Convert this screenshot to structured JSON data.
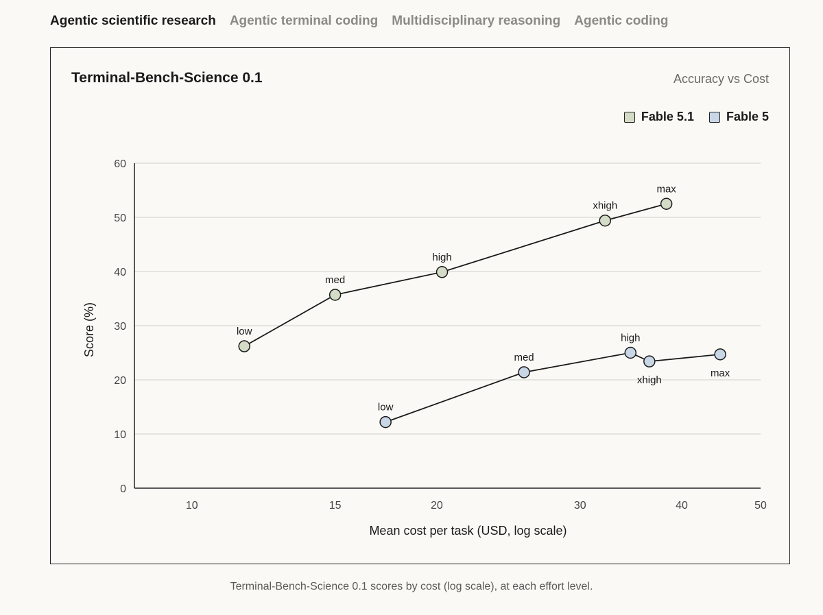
{
  "tabs": [
    {
      "label": "Agentic scientific research",
      "active": true
    },
    {
      "label": "Agentic terminal coding",
      "active": false
    },
    {
      "label": "Multidisciplinary reasoning",
      "active": false
    },
    {
      "label": "Agentic coding",
      "active": false
    }
  ],
  "caption": "Terminal-Bench-Science 0.1 scores by cost (log scale), at each effort level.",
  "chart_data": {
    "type": "line",
    "title": "Terminal-Bench-Science 0.1",
    "subtitle": "Accuracy vs Cost",
    "xlabel": "Mean cost per task (USD, log scale)",
    "ylabel": "Score (%)",
    "x_scale": "log",
    "xlim": [
      8.5,
      50
    ],
    "ylim": [
      0,
      60
    ],
    "x_ticks": [
      10,
      15,
      20,
      30,
      40,
      50
    ],
    "y_ticks": [
      0,
      10,
      20,
      30,
      40,
      50,
      60
    ],
    "grid": "horizontal",
    "legend_position": "top-right",
    "series": [
      {
        "name": "Fable 5.1",
        "color": "#d4dbc6",
        "points": [
          {
            "label": "low",
            "x": 11.6,
            "y": 26.2
          },
          {
            "label": "med",
            "x": 15.0,
            "y": 35.7
          },
          {
            "label": "high",
            "x": 20.3,
            "y": 39.9
          },
          {
            "label": "xhigh",
            "x": 32.2,
            "y": 49.4
          },
          {
            "label": "max",
            "x": 38.3,
            "y": 52.5
          }
        ]
      },
      {
        "name": "Fable 5",
        "color": "#c9d6e6",
        "points": [
          {
            "label": "low",
            "x": 17.3,
            "y": 12.2
          },
          {
            "label": "med",
            "x": 25.6,
            "y": 21.4
          },
          {
            "label": "high",
            "x": 34.6,
            "y": 25.0
          },
          {
            "label": "xhigh",
            "x": 36.5,
            "y": 23.4
          },
          {
            "label": "max",
            "x": 44.6,
            "y": 24.7
          }
        ]
      }
    ]
  }
}
